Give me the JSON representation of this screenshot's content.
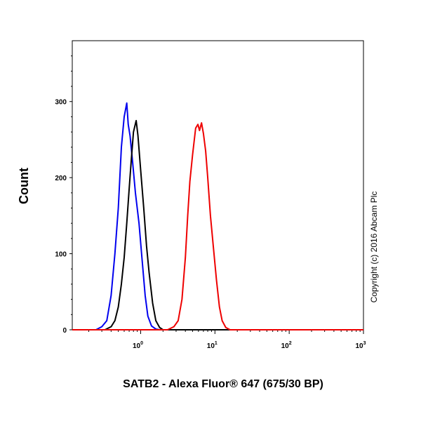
{
  "chart_data": {
    "type": "line",
    "title": "",
    "xlabel": "SATB2 - Alexa Fluor® 647 (675/30 BP)",
    "ylabel": "Count",
    "x_scale": "log",
    "xlim": [
      0.12,
      1000
    ],
    "ylim": [
      0,
      380
    ],
    "x_ticks": [
      {
        "value": 1,
        "base": "10",
        "exp": "0"
      },
      {
        "value": 10,
        "base": "10",
        "exp": "1"
      },
      {
        "value": 100,
        "base": "10",
        "exp": "2"
      },
      {
        "value": 1000,
        "base": "10",
        "exp": "3"
      }
    ],
    "y_ticks": [
      0,
      100,
      200,
      300
    ],
    "grid": false,
    "annotation": "Copyright (c) 2016 Abcam Plc",
    "series": [
      {
        "color": "#0000ee",
        "points": [
          [
            0.12,
            0
          ],
          [
            0.25,
            0
          ],
          [
            0.3,
            4
          ],
          [
            0.35,
            12
          ],
          [
            0.4,
            45
          ],
          [
            0.45,
            100
          ],
          [
            0.5,
            160
          ],
          [
            0.55,
            240
          ],
          [
            0.6,
            280
          ],
          [
            0.65,
            298
          ],
          [
            0.68,
            270
          ],
          [
            0.72,
            255
          ],
          [
            0.78,
            220
          ],
          [
            0.85,
            180
          ],
          [
            0.95,
            140
          ],
          [
            1.05,
            90
          ],
          [
            1.15,
            45
          ],
          [
            1.25,
            18
          ],
          [
            1.4,
            5
          ],
          [
            1.6,
            1
          ],
          [
            1.8,
            0
          ],
          [
            1000,
            0
          ]
        ]
      },
      {
        "color": "#000000",
        "points": [
          [
            0.12,
            0
          ],
          [
            0.33,
            0
          ],
          [
            0.4,
            4
          ],
          [
            0.45,
            12
          ],
          [
            0.5,
            30
          ],
          [
            0.55,
            60
          ],
          [
            0.6,
            95
          ],
          [
            0.65,
            140
          ],
          [
            0.7,
            185
          ],
          [
            0.75,
            225
          ],
          [
            0.8,
            260
          ],
          [
            0.87,
            275
          ],
          [
            0.92,
            255
          ],
          [
            1.0,
            210
          ],
          [
            1.1,
            160
          ],
          [
            1.2,
            110
          ],
          [
            1.3,
            75
          ],
          [
            1.45,
            35
          ],
          [
            1.6,
            12
          ],
          [
            1.8,
            3
          ],
          [
            2.0,
            0
          ],
          [
            1000,
            0
          ]
        ]
      },
      {
        "color": "#ee0000",
        "points": [
          [
            0.12,
            0
          ],
          [
            2.3,
            0
          ],
          [
            2.8,
            4
          ],
          [
            3.2,
            12
          ],
          [
            3.6,
            40
          ],
          [
            4.0,
            95
          ],
          [
            4.3,
            150
          ],
          [
            4.6,
            195
          ],
          [
            5.0,
            230
          ],
          [
            5.5,
            265
          ],
          [
            5.9,
            270
          ],
          [
            6.2,
            262
          ],
          [
            6.6,
            272
          ],
          [
            7.0,
            258
          ],
          [
            7.5,
            235
          ],
          [
            8.0,
            200
          ],
          [
            8.7,
            150
          ],
          [
            9.5,
            110
          ],
          [
            10.5,
            65
          ],
          [
            11.5,
            30
          ],
          [
            12.5,
            12
          ],
          [
            14,
            3
          ],
          [
            16,
            0
          ],
          [
            1000,
            0
          ]
        ]
      }
    ]
  }
}
